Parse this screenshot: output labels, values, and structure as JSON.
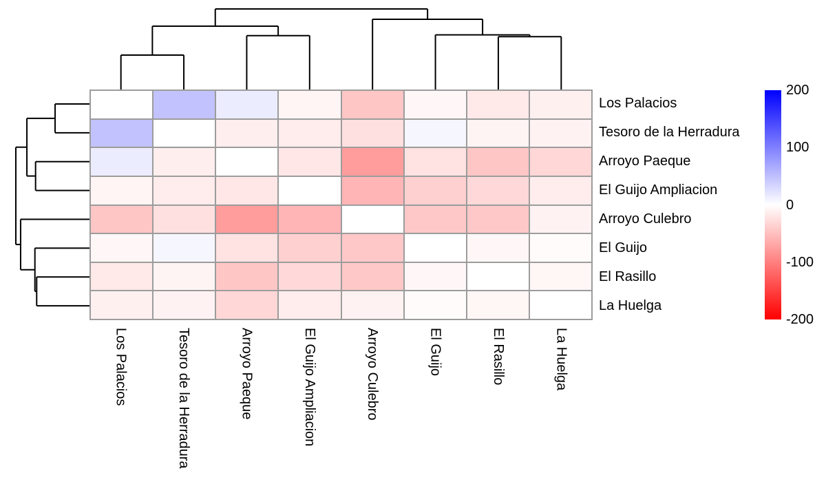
{
  "figure_type": "clustered-heatmap-plot",
  "chart_data": {
    "type": "heatmap",
    "title": "",
    "row_labels": [
      "Los Palacios",
      "Tesoro de la Herradura",
      "Arroyo Paeque",
      "El Guijo Ampliacion",
      "Arroyo Culebro",
      "El Guijo",
      "El Rasillo",
      "La Huelga"
    ],
    "col_labels": [
      "Los Palacios",
      "Tesoro de la Herradura",
      "Arroyo Paeque",
      "El Guijo Ampliacion",
      "Arroyo Culebro",
      "El Guijo",
      "El Rasillo",
      "La Huelga"
    ],
    "matrix": [
      [
        0,
        48,
        15,
        -8,
        -45,
        -6,
        -17,
        -12
      ],
      [
        48,
        0,
        -13,
        -15,
        -24,
        7,
        -9,
        -10
      ],
      [
        15,
        -13,
        0,
        -19,
        -78,
        -23,
        -45,
        -31
      ],
      [
        -8,
        -15,
        -19,
        0,
        -58,
        -37,
        -30,
        -14
      ],
      [
        -45,
        -24,
        -78,
        -58,
        0,
        -43,
        -43,
        -10
      ],
      [
        -6,
        7,
        -23,
        -37,
        -43,
        0,
        -6,
        -3
      ],
      [
        -17,
        -9,
        -45,
        -30,
        -43,
        -6,
        0,
        -7
      ],
      [
        -12,
        -10,
        -31,
        -14,
        -10,
        -3,
        -7,
        0
      ]
    ],
    "colorscale": {
      "limit": 200,
      "max_color": "#0000ff",
      "zero_color": "#ffffff",
      "min_color": "#ff0000"
    },
    "legend": {
      "ticks": [
        "200",
        "100",
        "0",
        "-100",
        "-200"
      ],
      "tick_values": [
        200,
        100,
        0,
        -100,
        -200
      ]
    },
    "grid_color": "#9c9c9c",
    "dendrogram_line_color": "#000000",
    "col_dendrogram": {
      "h": 1.0,
      "children": [
        {
          "h": 0.786,
          "children": [
            {
              "h": 0.427,
              "children": [
                {
                  "leaf": 0
                },
                {
                  "leaf": 1
                }
              ]
            },
            {
              "h": 0.669,
              "children": [
                {
                  "leaf": 2
                },
                {
                  "leaf": 3
                }
              ]
            }
          ]
        },
        {
          "h": 0.872,
          "children": [
            {
              "leaf": 4
            },
            {
              "h": 0.678,
              "children": [
                {
                  "leaf": 5
                },
                {
                  "h": 0.656,
                  "children": [
                    {
                      "leaf": 6
                    },
                    {
                      "leaf": 7
                    }
                  ]
                }
              ]
            }
          ]
        }
      ]
    },
    "row_dendrogram": {
      "h": 1.0,
      "children": [
        {
          "h": 0.85,
          "children": [
            {
              "h": 0.467,
              "children": [
                {
                  "leaf": 0
                },
                {
                  "leaf": 1
                }
              ]
            },
            {
              "h": 0.732,
              "children": [
                {
                  "leaf": 2
                },
                {
                  "leaf": 3
                }
              ]
            }
          ]
        },
        {
          "h": 0.935,
          "children": [
            {
              "leaf": 4
            },
            {
              "h": 0.741,
              "children": [
                {
                  "leaf": 5
                },
                {
                  "h": 0.717,
                  "children": [
                    {
                      "leaf": 6
                    },
                    {
                      "leaf": 7
                    }
                  ]
                }
              ]
            }
          ]
        }
      ]
    }
  }
}
